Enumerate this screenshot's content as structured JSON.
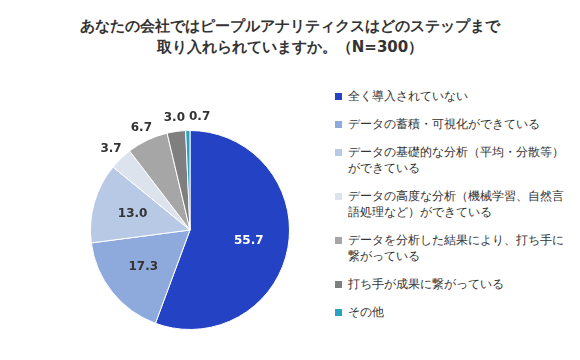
{
  "chart_data": {
    "type": "pie",
    "title": [
      "あなたの会社ではピープルアナリティクスはどのステップまで",
      "取り入れられていますか。（N=300）"
    ],
    "categories": [
      "全く導入されていない",
      "データの蓄積・可視化ができている",
      "データの基礎的な分析（平均・分散等）ができている",
      "データの高度な分析（機械学習、自然言語処理など）ができている",
      "データを分析した結果により、打ち手に繋がっている",
      "打ち手が成果に繋がっている",
      "その他"
    ],
    "values": [
      55.7,
      17.3,
      13.0,
      3.7,
      6.7,
      3.0,
      0.7
    ],
    "value_labels": [
      "55.7",
      "17.3",
      "13.0",
      "3.7",
      "6.7",
      "3.0",
      "0.7"
    ],
    "colors": [
      "#2343c4",
      "#8eaadc",
      "#b8c9e6",
      "#dde3ec",
      "#a6a6a6",
      "#7f7f7f",
      "#2aa3c2"
    ],
    "data_labels": true,
    "legend": "right"
  }
}
